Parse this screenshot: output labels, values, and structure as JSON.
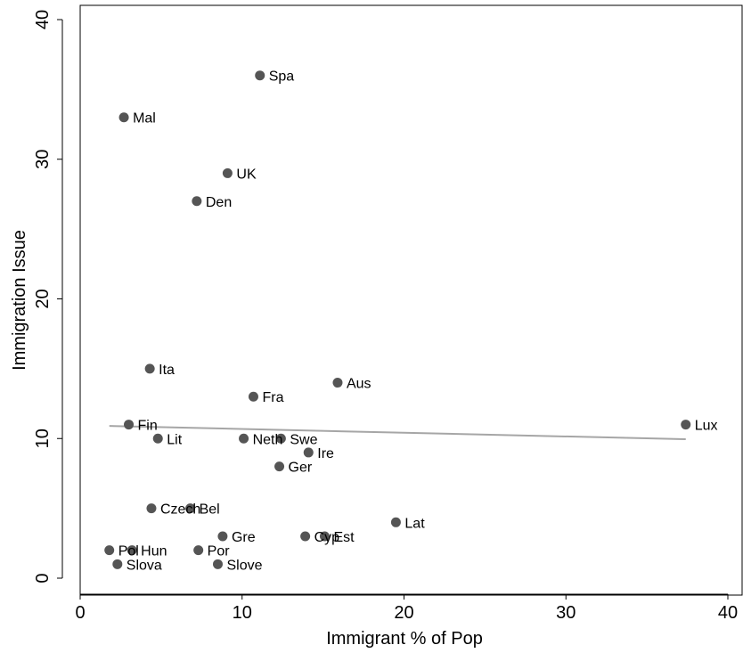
{
  "chart_data": {
    "type": "scatter",
    "xlabel": "Immigrant % of Pop",
    "ylabel": "Immigration Issue",
    "xlim": [
      0,
      40
    ],
    "ylim": [
      0,
      40
    ],
    "x_ticks": [
      0,
      10,
      20,
      30,
      40
    ],
    "y_ticks": [
      0,
      10,
      20,
      30,
      40
    ],
    "grid": false,
    "points": [
      {
        "label": "Spa",
        "x": 11.1,
        "y": 36
      },
      {
        "label": "Mal",
        "x": 2.7,
        "y": 33
      },
      {
        "label": "UK",
        "x": 9.1,
        "y": 29
      },
      {
        "label": "Den",
        "x": 7.2,
        "y": 27
      },
      {
        "label": "Ita",
        "x": 4.3,
        "y": 15
      },
      {
        "label": "Aus",
        "x": 15.9,
        "y": 14
      },
      {
        "label": "Fra",
        "x": 10.7,
        "y": 13
      },
      {
        "label": "Lux",
        "x": 37.4,
        "y": 11
      },
      {
        "label": "Fin",
        "x": 3.0,
        "y": 11
      },
      {
        "label": "Lit",
        "x": 4.8,
        "y": 10
      },
      {
        "label": "Neth",
        "x": 10.1,
        "y": 10
      },
      {
        "label": "Swe",
        "x": 12.4,
        "y": 10
      },
      {
        "label": "Ire",
        "x": 14.1,
        "y": 9
      },
      {
        "label": "Ger",
        "x": 12.3,
        "y": 8
      },
      {
        "label": "Czech",
        "x": 4.4,
        "y": 5
      },
      {
        "label": "Bel",
        "x": 6.8,
        "y": 5
      },
      {
        "label": "Lat",
        "x": 19.5,
        "y": 4
      },
      {
        "label": "Gre",
        "x": 8.8,
        "y": 3
      },
      {
        "label": "Cyp",
        "x": 13.9,
        "y": 3
      },
      {
        "label": "Est",
        "x": 15.1,
        "y": 3
      },
      {
        "label": "Pol",
        "x": 1.8,
        "y": 2
      },
      {
        "label": "Hun",
        "x": 3.2,
        "y": 2
      },
      {
        "label": "Por",
        "x": 7.3,
        "y": 2
      },
      {
        "label": "Slova",
        "x": 2.3,
        "y": 1
      },
      {
        "label": "Slove",
        "x": 8.5,
        "y": 1
      }
    ],
    "fit_line": {
      "x": [
        1.8,
        37.4
      ],
      "y": [
        10.9,
        9.95
      ]
    },
    "colors": {
      "points": "#555555",
      "fit_line": "#a6a6a6",
      "axes": "#000000"
    }
  }
}
